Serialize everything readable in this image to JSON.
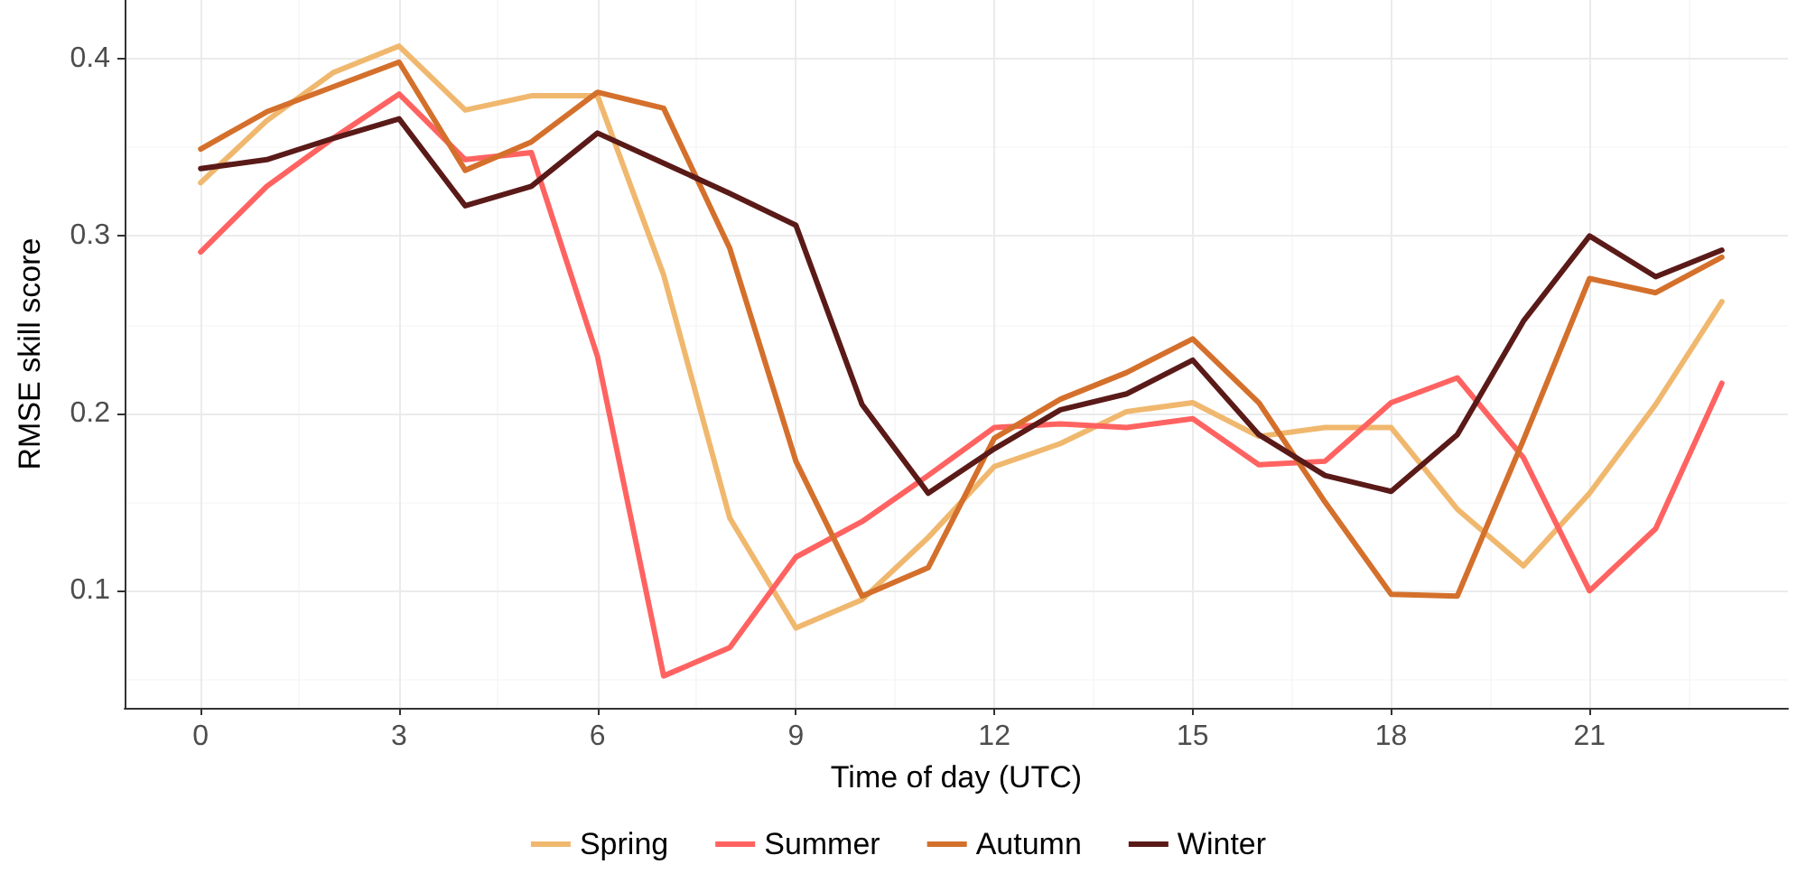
{
  "chart_data": {
    "type": "line",
    "xlabel": "Time of day (UTC)",
    "ylabel": "RMSE skill score",
    "x": [
      0,
      1,
      2,
      3,
      4,
      5,
      6,
      7,
      8,
      9,
      10,
      11,
      12,
      13,
      14,
      15,
      16,
      17,
      18,
      19,
      20,
      21,
      22,
      23
    ],
    "xlim": [
      -1.15,
      24
    ],
    "xticks": [
      0,
      3,
      6,
      9,
      12,
      15,
      18,
      21
    ],
    "ylim": [
      0.034,
      0.433
    ],
    "yticks": [
      0.1,
      0.2,
      0.3,
      0.4
    ],
    "grid": true,
    "legend": "bottom",
    "marker": "none",
    "line_style": "solid",
    "series": [
      {
        "name": "Spring",
        "color": "#f0b86e",
        "values": [
          0.33,
          0.365,
          0.392,
          0.407,
          0.371,
          0.379,
          0.379,
          0.278,
          0.141,
          0.079,
          0.095,
          0.13,
          0.17,
          0.183,
          0.201,
          0.206,
          0.187,
          0.192,
          0.192,
          0.146,
          0.114,
          0.155,
          0.205,
          0.263
        ]
      },
      {
        "name": "Summer",
        "color": "#ff6361",
        "values": [
          0.291,
          0.328,
          0.355,
          0.38,
          0.343,
          0.347,
          0.232,
          0.052,
          0.068,
          0.119,
          0.139,
          0.165,
          0.192,
          0.194,
          0.192,
          0.197,
          0.171,
          0.173,
          0.206,
          0.22,
          0.175,
          0.1,
          0.135,
          0.217
        ]
      },
      {
        "name": "Autumn",
        "color": "#d4702c",
        "values": [
          0.349,
          0.37,
          0.384,
          0.398,
          0.337,
          0.353,
          0.381,
          0.372,
          0.293,
          0.173,
          0.097,
          0.113,
          0.186,
          0.208,
          0.223,
          0.242,
          0.206,
          0.15,
          0.098,
          0.097,
          0.185,
          0.276,
          0.268,
          0.288
        ]
      },
      {
        "name": "Winter",
        "color": "#5a1a18",
        "values": [
          0.338,
          0.343,
          0.355,
          0.366,
          0.317,
          0.328,
          0.358,
          0.341,
          0.324,
          0.306,
          0.205,
          0.155,
          0.18,
          0.202,
          0.211,
          0.23,
          0.188,
          0.165,
          0.156,
          0.188,
          0.252,
          0.3,
          0.277,
          0.292
        ]
      }
    ]
  }
}
